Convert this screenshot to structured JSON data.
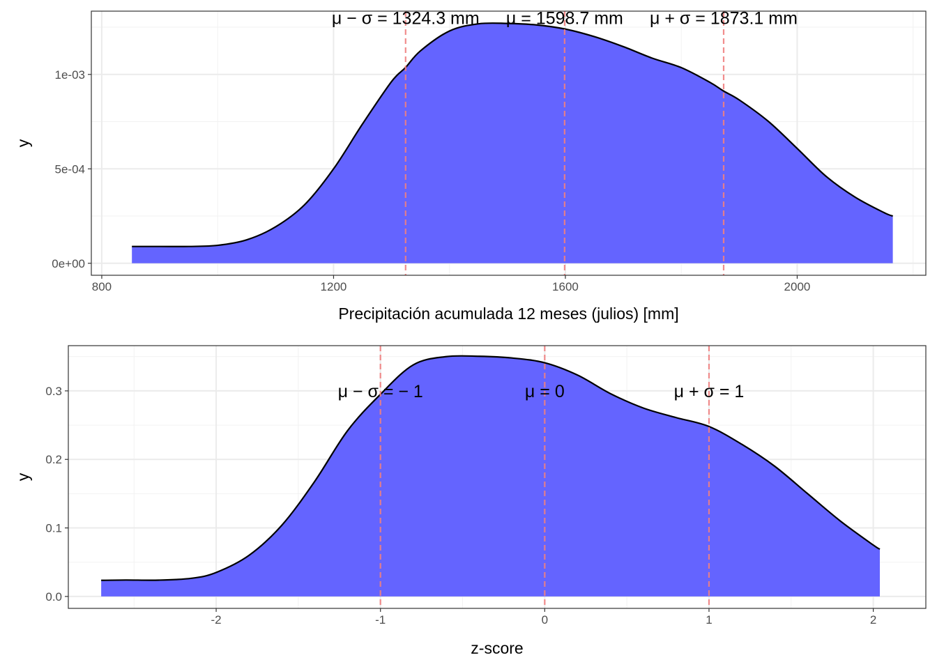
{
  "chart_data": [
    {
      "type": "area",
      "xlabel": "Precipitación acumulada 12 meses (julios) [mm]",
      "ylabel": "y",
      "xlim": [
        782,
        2222
      ],
      "ylim": [
        -6.35e-05,
        0.001335
      ],
      "x_ticks": [
        800,
        1200,
        1600,
        2000
      ],
      "x_tick_labels": [
        "800",
        "1200",
        "1600",
        "2000"
      ],
      "y_ticks": [
        0,
        0.0005,
        0.001
      ],
      "y_tick_labels": [
        "0e+00",
        "5e-04",
        "1e-03"
      ],
      "fill_color": "#6464ff",
      "line_color": "#000000",
      "vline_color": "#f08080",
      "grid": true,
      "x": [
        852,
        900,
        950,
        1000,
        1050,
        1100,
        1150,
        1200,
        1250,
        1300,
        1324,
        1350,
        1400,
        1450,
        1500,
        1550,
        1600,
        1650,
        1700,
        1750,
        1800,
        1850,
        1873,
        1900,
        1950,
        2000,
        2050,
        2100,
        2150,
        2165
      ],
      "y": [
        8.9e-05,
        8.9e-05,
        8.9e-05,
        9.5e-05,
        0.000124,
        0.000193,
        0.00031,
        0.0005,
        0.000738,
        0.000962,
        0.001036,
        0.001125,
        0.00123,
        0.001268,
        0.00127,
        0.001262,
        0.00124,
        0.0012,
        0.001147,
        0.001086,
        0.001036,
        0.000957,
        0.000912,
        0.000865,
        0.000752,
        0.000608,
        0.00046,
        0.00035,
        0.000268,
        0.00025
      ],
      "vlines": [
        1324.3,
        1598.7,
        1873.1
      ],
      "annotations": [
        {
          "x": 1324.3,
          "y": 0.0013,
          "text": "μ −  σ = 1324.3 mm"
        },
        {
          "x": 1598.7,
          "y": 0.0013,
          "text": "μ = 1598.7 mm"
        },
        {
          "x": 1873.1,
          "y": 0.0013,
          "text": "μ +  σ = 1873.1 mm"
        }
      ]
    },
    {
      "type": "area",
      "xlabel": "z-score",
      "ylabel": "y",
      "xlim": [
        -2.9,
        2.32
      ],
      "ylim": [
        -0.0174,
        0.366
      ],
      "x_ticks": [
        -2,
        -1,
        0,
        1,
        2
      ],
      "x_tick_labels": [
        "-2",
        "-1",
        "0",
        "1",
        "2"
      ],
      "y_ticks": [
        0,
        0.1,
        0.2,
        0.3
      ],
      "y_tick_labels": [
        "0.0",
        "0.1",
        "0.2",
        "0.3"
      ],
      "fill_color": "#6464ff",
      "line_color": "#000000",
      "vline_color": "#f08080",
      "grid": true,
      "x": [
        -2.7,
        -2.55,
        -2.35,
        -2.15,
        -2.0,
        -1.8,
        -1.6,
        -1.4,
        -1.2,
        -1.0,
        -0.8,
        -0.6,
        -0.4,
        -0.2,
        0.0,
        0.2,
        0.4,
        0.6,
        0.8,
        1.0,
        1.2,
        1.4,
        1.6,
        1.8,
        2.0,
        2.04
      ],
      "y": [
        0.0235,
        0.024,
        0.0238,
        0.0265,
        0.035,
        0.06,
        0.104,
        0.168,
        0.242,
        0.295,
        0.338,
        0.35,
        0.3505,
        0.348,
        0.341,
        0.323,
        0.296,
        0.275,
        0.261,
        0.248,
        0.222,
        0.19,
        0.15,
        0.11,
        0.075,
        0.069
      ],
      "vlines": [
        -1,
        0,
        1
      ],
      "annotations": [
        {
          "x": -1,
          "y": 0.3,
          "text": "μ −  σ = − 1"
        },
        {
          "x": 0,
          "y": 0.3,
          "text": "μ = 0"
        },
        {
          "x": 1,
          "y": 0.3,
          "text": "μ +  σ = 1"
        }
      ]
    }
  ]
}
